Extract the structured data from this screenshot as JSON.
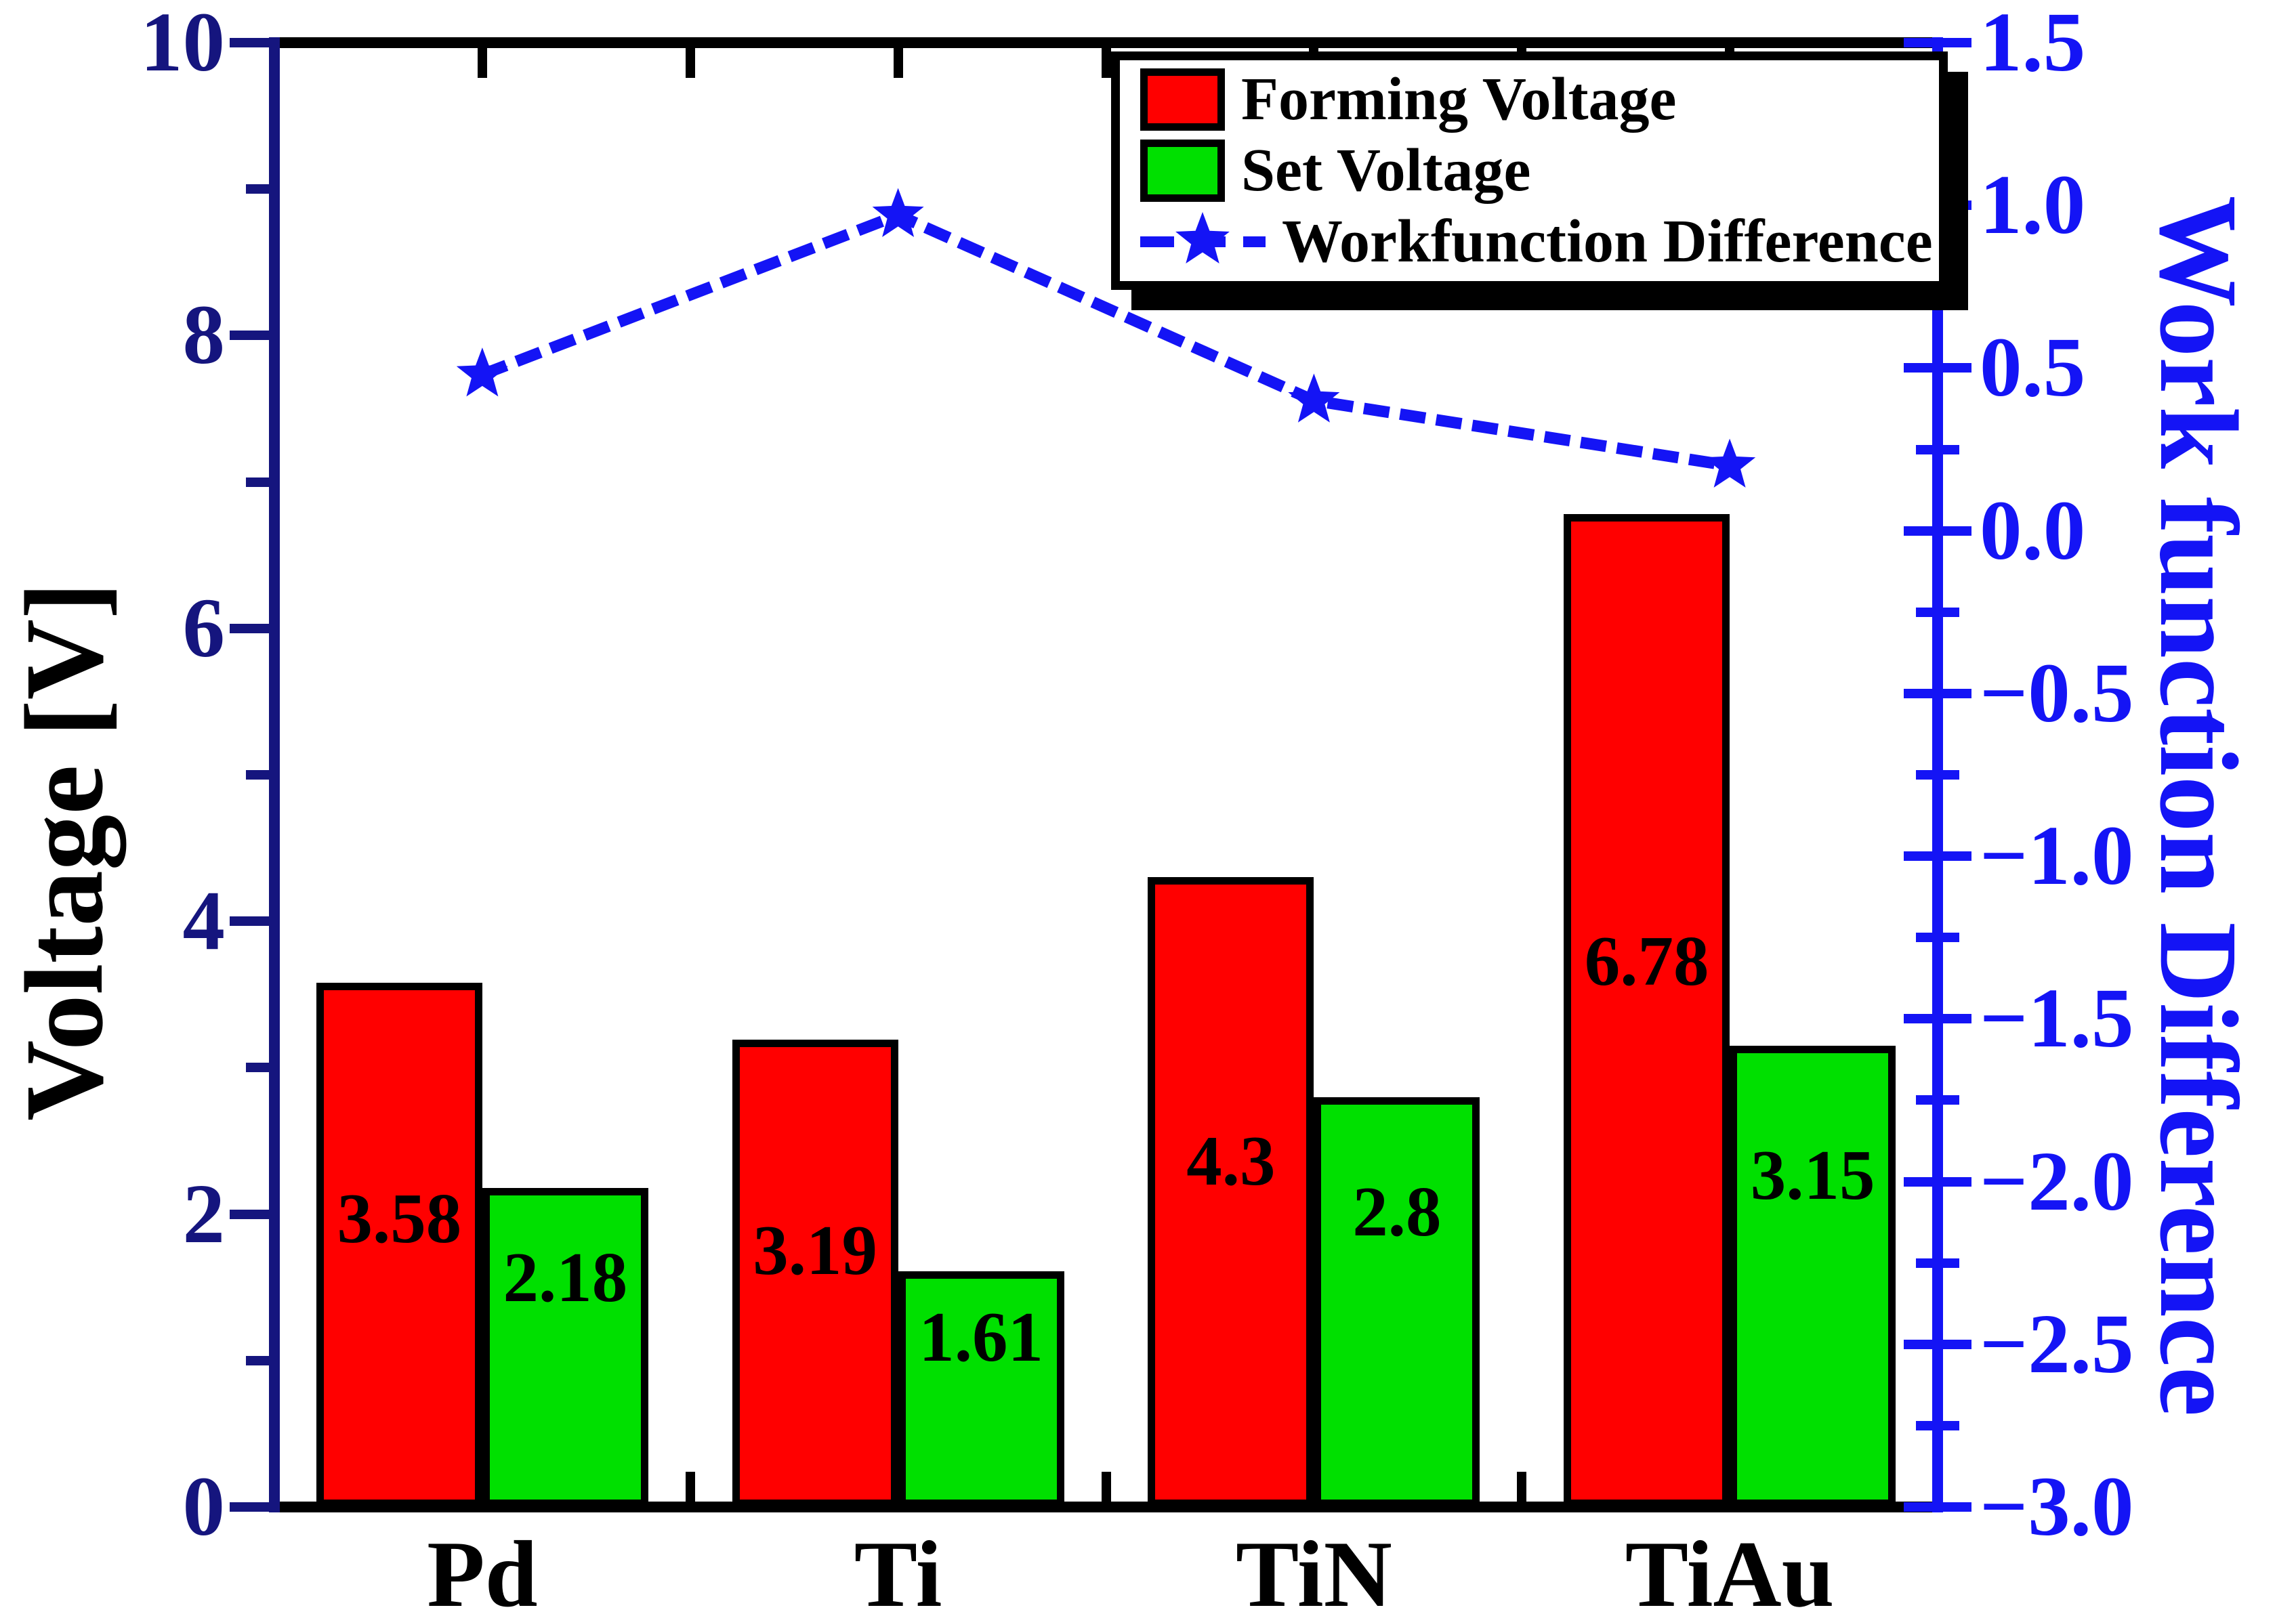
{
  "figure": {
    "background": "#ffffff",
    "colors": {
      "left_axis": "#15157e",
      "right_axis": "#1414f5",
      "forming_bar": "#ff0000",
      "set_bar": "#00e000",
      "bar_border": "#000000",
      "axis_black": "#000000"
    }
  },
  "chart_data": {
    "type": "bar",
    "subtype": "grouped-bar-with-line-overlay",
    "categories": [
      "Pd",
      "Ti",
      "TiN",
      "TiAu"
    ],
    "series": [
      {
        "name": "Forming Voltage",
        "type": "bar",
        "axis": "left",
        "color": "#ff0000",
        "values": [
          3.58,
          3.19,
          4.3,
          6.78
        ],
        "labels": [
          "3.58",
          "3.19",
          "4.3",
          "6.78"
        ]
      },
      {
        "name": "Set Voltage",
        "type": "bar",
        "axis": "left",
        "color": "#00e000",
        "values": [
          2.18,
          1.61,
          2.8,
          3.15
        ],
        "labels": [
          "2.18",
          "1.61",
          "2.8",
          "3.15"
        ]
      },
      {
        "name": "Workfunction Difference",
        "type": "line",
        "axis": "right",
        "color": "#1414f5",
        "marker": "star",
        "line_style": "dashed",
        "values": [
          0.48,
          0.97,
          0.4,
          0.2
        ]
      }
    ],
    "left_axis": {
      "label": "Voltage [V]",
      "min": 0,
      "max": 10,
      "major_step": 2,
      "minor_step": 1,
      "ticks": [
        "0",
        "2",
        "4",
        "6",
        "8",
        "10"
      ],
      "tick_values": [
        0,
        2,
        4,
        6,
        8,
        10
      ]
    },
    "right_axis": {
      "label": "Work function Difference",
      "min": -3.0,
      "max": 1.5,
      "major_step": 0.5,
      "minor_step": 0.25,
      "ticks": [
        "1.5",
        "1.0",
        "0.5",
        "0.0",
        "−0.5",
        "−1.0",
        "−1.5",
        "−2.0",
        "−2.5",
        "−3.0"
      ],
      "tick_values": [
        1.5,
        1.0,
        0.5,
        0.0,
        -0.5,
        -1.0,
        -1.5,
        -2.0,
        -2.5,
        -3.0
      ]
    },
    "x_axis": {
      "tick_positions": "category centers and boundaries, inward",
      "labels": [
        "Pd",
        "Ti",
        "TiN",
        "TiAu"
      ]
    },
    "legend": {
      "position": "top-right",
      "entries": [
        "Forming Voltage",
        "Set Voltage",
        "Workfunction Difference"
      ]
    },
    "grid": "off"
  }
}
